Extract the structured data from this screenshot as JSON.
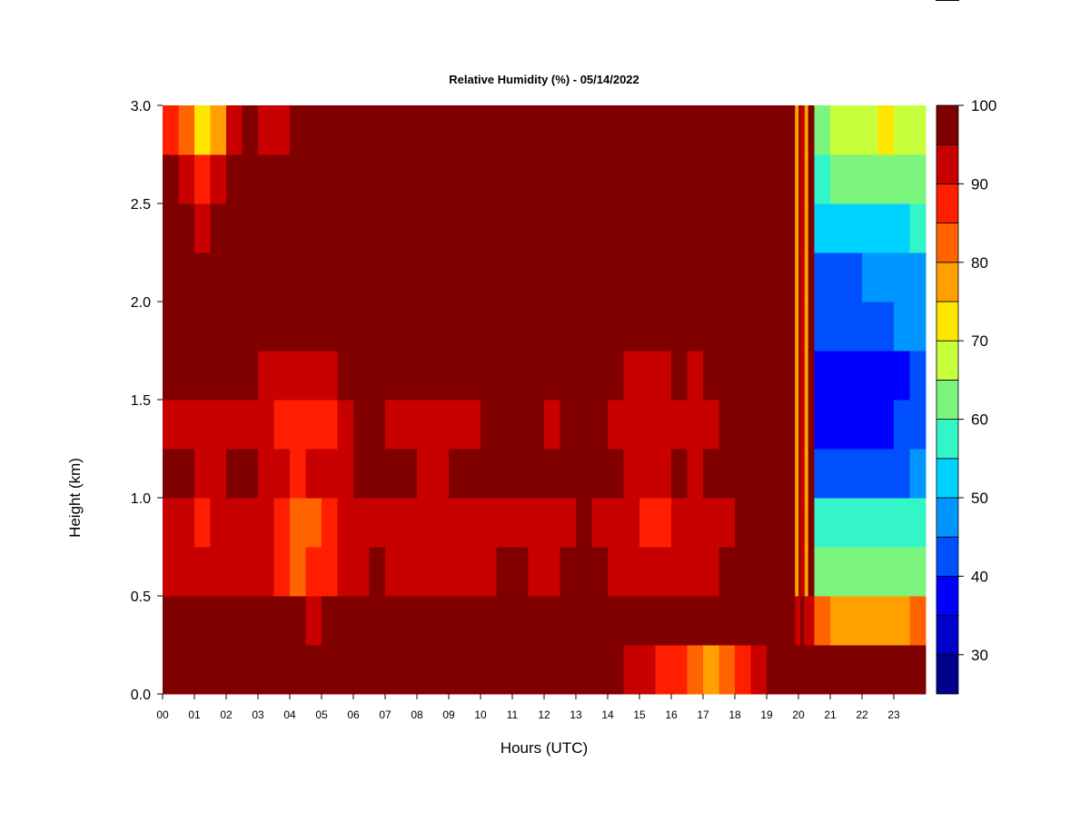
{
  "chart_data": {
    "type": "heatmap",
    "title": "Relative Humidity (%) - 05/14/2022",
    "xlabel": "Hours (UTC)",
    "ylabel": "Height (km)",
    "xlim": [
      0,
      24
    ],
    "ylim": [
      0.0,
      3.0
    ],
    "x_ticks": [
      {
        "value": 0,
        "label": "00"
      },
      {
        "value": 1,
        "label": "01"
      },
      {
        "value": 2,
        "label": "02"
      },
      {
        "value": 3,
        "label": "03"
      },
      {
        "value": 4,
        "label": "04"
      },
      {
        "value": 5,
        "label": "05"
      },
      {
        "value": 6,
        "label": "06"
      },
      {
        "value": 7,
        "label": "07"
      },
      {
        "value": 8,
        "label": "08"
      },
      {
        "value": 9,
        "label": "09"
      },
      {
        "value": 10,
        "label": "10"
      },
      {
        "value": 11,
        "label": "11"
      },
      {
        "value": 12,
        "label": "12"
      },
      {
        "value": 13,
        "label": "13"
      },
      {
        "value": 14,
        "label": "14"
      },
      {
        "value": 15,
        "label": "15"
      },
      {
        "value": 16,
        "label": "16"
      },
      {
        "value": 17,
        "label": "17"
      },
      {
        "value": 18,
        "label": "18"
      },
      {
        "value": 19,
        "label": "19"
      },
      {
        "value": 20,
        "label": "20"
      },
      {
        "value": 21,
        "label": "21"
      },
      {
        "value": 22,
        "label": "22"
      },
      {
        "value": 23,
        "label": "23"
      }
    ],
    "y_ticks": [
      {
        "value": 0.0,
        "label": "0.0"
      },
      {
        "value": 0.5,
        "label": "0.5"
      },
      {
        "value": 1.0,
        "label": "1.0"
      },
      {
        "value": 1.5,
        "label": "1.5"
      },
      {
        "value": 2.0,
        "label": "2.0"
      },
      {
        "value": 2.5,
        "label": "2.5"
      },
      {
        "value": 3.0,
        "label": "3.0"
      }
    ],
    "colorbar": {
      "bins": [
        25,
        30,
        35,
        40,
        45,
        50,
        55,
        60,
        65,
        70,
        75,
        80,
        85,
        90,
        95,
        100
      ],
      "colors": [
        "#00008b",
        "#0000cd",
        "#0000ff",
        "#0050ff",
        "#0096ff",
        "#00d2ff",
        "#34f5c8",
        "#7cf57c",
        "#c8ff3c",
        "#ffe600",
        "#ffa000",
        "#ff6400",
        "#ff1e00",
        "#c80000",
        "#800000"
      ],
      "tick_labels": [
        {
          "value": 30,
          "label": "30"
        },
        {
          "value": 40,
          "label": "40"
        },
        {
          "value": 50,
          "label": "50"
        },
        {
          "value": 60,
          "label": "60"
        },
        {
          "value": 70,
          "label": "70"
        },
        {
          "value": 80,
          "label": "80"
        },
        {
          "value": 90,
          "label": "90"
        },
        {
          "value": 100,
          "label": "100"
        }
      ]
    },
    "grid": false,
    "data_resolution": {
      "x_step_hours": 0.5,
      "y_step_km": 0.25
    },
    "x": [
      0.25,
      0.75,
      1.25,
      1.75,
      2.25,
      2.75,
      3.25,
      3.75,
      4.25,
      4.75,
      5.25,
      5.75,
      6.25,
      6.75,
      7.25,
      7.75,
      8.25,
      8.75,
      9.25,
      9.75,
      10.25,
      10.75,
      11.25,
      11.75,
      12.25,
      12.75,
      13.25,
      13.75,
      14.25,
      14.75,
      15.25,
      15.75,
      16.25,
      16.75,
      17.25,
      17.75,
      18.25,
      18.75,
      19.25,
      19.75,
      20.25,
      20.75,
      21.25,
      21.75,
      22.25,
      22.75,
      23.25,
      23.75
    ],
    "y": [
      0.125,
      0.375,
      0.625,
      0.875,
      1.125,
      1.375,
      1.625,
      1.875,
      2.125,
      2.375,
      2.625,
      2.875
    ],
    "z_rows_bottom_to_top": [
      [
        98,
        99,
        99,
        99,
        99,
        99,
        99,
        98,
        98,
        98,
        98,
        99,
        99,
        99,
        99,
        99,
        99,
        99,
        99,
        99,
        99,
        99,
        99,
        99,
        99,
        99,
        99,
        99,
        96,
        93,
        90,
        88,
        85,
        80,
        78,
        80,
        85,
        92,
        97,
        99,
        98,
        98,
        98,
        98,
        98,
        98,
        98,
        98
      ],
      [
        98,
        98,
        98,
        98,
        98,
        98,
        97,
        96,
        95,
        94,
        95,
        97,
        98,
        98,
        98,
        98,
        98,
        98,
        98,
        98,
        98,
        98,
        98,
        98,
        98,
        98,
        98,
        98,
        98,
        98,
        98,
        98,
        98,
        98,
        98,
        98,
        98,
        98,
        98,
        98,
        90,
        80,
        78,
        78,
        78,
        78,
        78,
        80
      ],
      [
        92,
        91,
        90,
        91,
        93,
        92,
        90,
        86,
        84,
        85,
        87,
        91,
        94,
        95,
        93,
        94,
        92,
        90,
        92,
        93,
        94,
        95,
        95,
        94,
        93,
        95,
        96,
        95,
        94,
        92,
        90,
        90,
        92,
        91,
        93,
        95,
        96,
        96,
        96,
        96,
        95,
        62,
        60,
        60,
        60,
        60,
        60,
        62
      ],
      [
        91,
        90,
        89,
        90,
        92,
        92,
        90,
        85,
        83,
        84,
        86,
        90,
        93,
        94,
        92,
        93,
        91,
        90,
        91,
        92,
        93,
        94,
        94,
        93,
        92,
        94,
        95,
        94,
        93,
        91,
        89,
        89,
        91,
        90,
        92,
        94,
        95,
        95,
        95,
        95,
        95,
        56,
        56,
        55,
        55,
        55,
        55,
        58
      ],
      [
        96,
        96,
        94,
        94,
        95,
        95,
        93,
        90,
        89,
        90,
        91,
        94,
        96,
        96,
        95,
        95,
        94,
        94,
        95,
        95,
        96,
        96,
        97,
        96,
        95,
        96,
        97,
        96,
        95,
        94,
        93,
        93,
        95,
        94,
        95,
        96,
        97,
        97,
        97,
        97,
        97,
        43,
        42,
        42,
        42,
        42,
        44,
        46
      ],
      [
        93,
        93,
        91,
        90,
        92,
        92,
        90,
        87,
        86,
        87,
        88,
        92,
        95,
        95,
        94,
        94,
        93,
        92,
        93,
        94,
        95,
        95,
        96,
        95,
        94,
        95,
        96,
        95,
        94,
        92,
        91,
        91,
        93,
        92,
        94,
        95,
        96,
        96,
        96,
        96,
        97,
        38,
        37,
        37,
        37,
        37,
        40,
        42
      ],
      [
        96,
        96,
        95,
        95,
        96,
        96,
        94,
        92,
        91,
        92,
        93,
        95,
        97,
        97,
        96,
        96,
        95,
        95,
        96,
        96,
        97,
        97,
        97,
        96,
        96,
        97,
        97,
        96,
        95,
        94,
        93,
        93,
        95,
        94,
        96,
        97,
        97,
        97,
        97,
        97,
        98,
        37,
        36,
        35,
        35,
        35,
        38,
        41
      ],
      [
        99,
        99,
        99,
        99,
        99,
        99,
        99,
        98,
        98,
        98,
        98,
        99,
        99,
        99,
        99,
        99,
        99,
        99,
        99,
        99,
        99,
        99,
        99,
        99,
        99,
        99,
        99,
        99,
        98,
        98,
        98,
        98,
        98,
        98,
        99,
        99,
        99,
        99,
        99,
        99,
        98,
        44,
        44,
        44,
        44,
        44,
        46,
        48
      ],
      [
        99,
        99,
        99,
        99,
        99,
        99,
        99,
        99,
        99,
        99,
        99,
        99,
        99,
        99,
        99,
        99,
        99,
        99,
        99,
        99,
        99,
        99,
        99,
        99,
        99,
        99,
        99,
        99,
        99,
        99,
        99,
        99,
        99,
        99,
        99,
        99,
        99,
        99,
        99,
        99,
        98,
        44,
        44,
        44,
        45,
        46,
        46,
        48
      ],
      [
        97,
        96,
        94,
        95,
        97,
        98,
        99,
        99,
        99,
        99,
        99,
        99,
        99,
        99,
        99,
        99,
        99,
        99,
        99,
        99,
        99,
        99,
        99,
        99,
        99,
        99,
        99,
        99,
        99,
        99,
        99,
        99,
        99,
        99,
        99,
        99,
        99,
        99,
        99,
        99,
        98,
        52,
        52,
        52,
        53,
        54,
        54,
        55
      ],
      [
        95,
        92,
        86,
        90,
        96,
        98,
        98,
        98,
        99,
        99,
        99,
        99,
        99,
        99,
        99,
        99,
        99,
        99,
        99,
        99,
        99,
        99,
        99,
        99,
        99,
        99,
        99,
        99,
        99,
        99,
        99,
        99,
        99,
        99,
        99,
        99,
        99,
        99,
        99,
        99,
        98,
        58,
        60,
        62,
        62,
        62,
        60,
        60
      ],
      [
        88,
        80,
        74,
        78,
        92,
        96,
        94,
        92,
        96,
        97,
        97,
        99,
        99,
        99,
        99,
        99,
        99,
        99,
        99,
        99,
        99,
        99,
        99,
        99,
        99,
        99,
        99,
        99,
        99,
        99,
        99,
        99,
        99,
        99,
        99,
        99,
        99,
        99,
        99,
        99,
        98,
        64,
        66,
        68,
        68,
        70,
        67,
        65
      ]
    ],
    "narrow_columns": [
      {
        "x": 19.95,
        "values_bottom_to_top": [
          98,
          90,
          75,
          75,
          75,
          75,
          75,
          75,
          75,
          75,
          75,
          75
        ]
      },
      {
        "x": 20.12,
        "values_bottom_to_top": [
          98,
          95,
          92,
          92,
          92,
          92,
          92,
          92,
          92,
          92,
          92,
          92
        ]
      },
      {
        "x": 20.25,
        "values_bottom_to_top": [
          98,
          90,
          75,
          75,
          75,
          75,
          75,
          75,
          75,
          75,
          75,
          75
        ]
      }
    ]
  }
}
